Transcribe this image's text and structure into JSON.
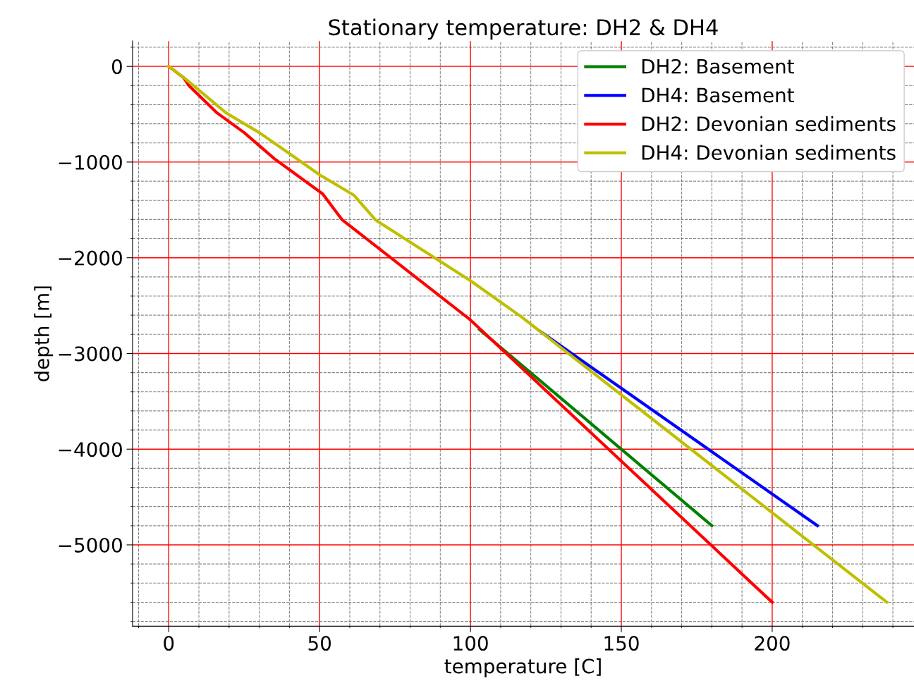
{
  "chart_data": {
    "type": "line",
    "title": "Stationary temperature: DH2 & DH4",
    "xlabel": "temperature [C]",
    "ylabel": "depth [m]",
    "series": [
      {
        "name": "DH2: Basement",
        "color": "#008000",
        "x": [
          103,
          180
        ],
        "values": [
          -2750,
          -4800
        ]
      },
      {
        "name": "DH4: Basement",
        "color": "#0000ff",
        "x": [
          123,
          215
        ],
        "values": [
          -2767,
          -4800
        ]
      },
      {
        "name": "DH2: Devonian sediments",
        "color": "#ff0000",
        "x": [
          0,
          4.9,
          6.8,
          16,
          25,
          35,
          51,
          57.5,
          100,
          200
        ],
        "values": [
          0,
          -118,
          -206,
          -486,
          -692,
          -965,
          -1332,
          -1604,
          -2650,
          -5600
        ]
      },
      {
        "name": "DH4: Devonian sediments",
        "color": "#bfbf00",
        "x": [
          0,
          5.6,
          19,
          30,
          40.7,
          50,
          61.4,
          68.5,
          100,
          117,
          238
        ],
        "values": [
          0,
          -132,
          -486,
          -692,
          -927,
          -1133,
          -1347,
          -1604,
          -2240,
          -2620,
          -5600
        ]
      }
    ],
    "xlim": [
      -12,
      247
    ],
    "ylim": [
      -5850,
      265
    ],
    "xticks": [
      0,
      50,
      100,
      150,
      200
    ],
    "yticks": [
      0,
      {
        "value": -1000,
        "label": "−1000"
      },
      {
        "value": -2000,
        "label": "−2000"
      },
      {
        "value": -3000,
        "label": "−3000"
      },
      {
        "value": -4000,
        "label": "−4000"
      },
      {
        "value": -5000,
        "label": "−5000"
      }
    ],
    "grid": true,
    "legend": "top right",
    "marker": "none",
    "line_style": "solid"
  }
}
